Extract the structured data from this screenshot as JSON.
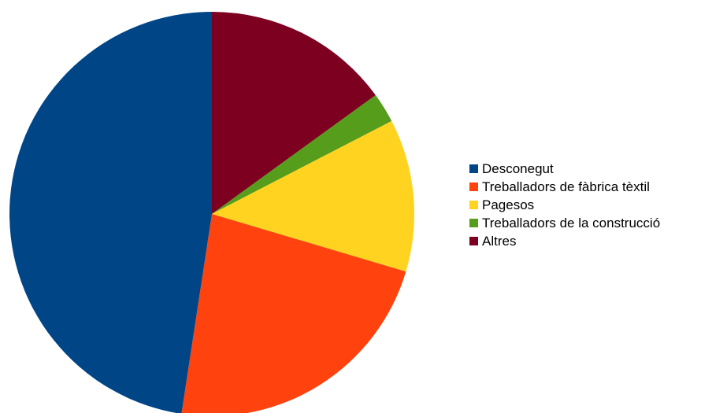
{
  "chart_data": {
    "type": "pie",
    "title": "",
    "start_angle": "12 o'clock",
    "direction": "clockwise",
    "legend_position": "right",
    "categories": [
      "Desconegut",
      "Treballadors de fàbrica tèxtil",
      "Pagesos",
      "Treballadors de la construcció",
      "Altres"
    ],
    "values": [
      47.6,
      22.8,
      12.2,
      2.4,
      15.0
    ],
    "colors": [
      "#004586",
      "#ff420e",
      "#ffd320",
      "#579d1c",
      "#7e0021"
    ],
    "slice_order": [
      "Altres",
      "Treballadors de la construcció",
      "Pagesos",
      "Treballadors de fàbrica tèxtil",
      "Desconegut"
    ]
  }
}
